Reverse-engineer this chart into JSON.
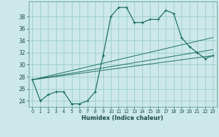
{
  "xlabel": "Humidex (Indice chaleur)",
  "ylabel": "",
  "background_color": "#cce8e8",
  "grid_color": "#99cccc",
  "line_color": "#1a6e5e",
  "xlim": [
    -0.5,
    23.5
  ],
  "ylim": [
    23.0,
    40.5
  ],
  "yticks": [
    24,
    26,
    28,
    30,
    32,
    34,
    36,
    38
  ],
  "xticks": [
    0,
    1,
    2,
    3,
    4,
    5,
    6,
    7,
    8,
    9,
    10,
    11,
    12,
    13,
    14,
    15,
    16,
    17,
    18,
    19,
    20,
    21,
    22,
    23
  ],
  "main_line": {
    "x": [
      0,
      1,
      2,
      3,
      4,
      5,
      6,
      7,
      8,
      9,
      10,
      11,
      12,
      13,
      14,
      15,
      16,
      17,
      18,
      19,
      20,
      21,
      22,
      23
    ],
    "y": [
      27.5,
      24.0,
      25.0,
      25.5,
      25.5,
      23.5,
      23.5,
      24.0,
      25.5,
      31.5,
      38.0,
      39.5,
      39.5,
      37.0,
      37.0,
      37.5,
      37.5,
      39.0,
      38.5,
      34.5,
      33.0,
      32.0,
      31.0,
      31.5
    ]
  },
  "trend_lines": [
    {
      "x": [
        0,
        23
      ],
      "y": [
        27.5,
        34.5
      ]
    },
    {
      "x": [
        0,
        23
      ],
      "y": [
        27.5,
        32.5
      ]
    },
    {
      "x": [
        0,
        23
      ],
      "y": [
        27.5,
        31.5
      ]
    }
  ]
}
